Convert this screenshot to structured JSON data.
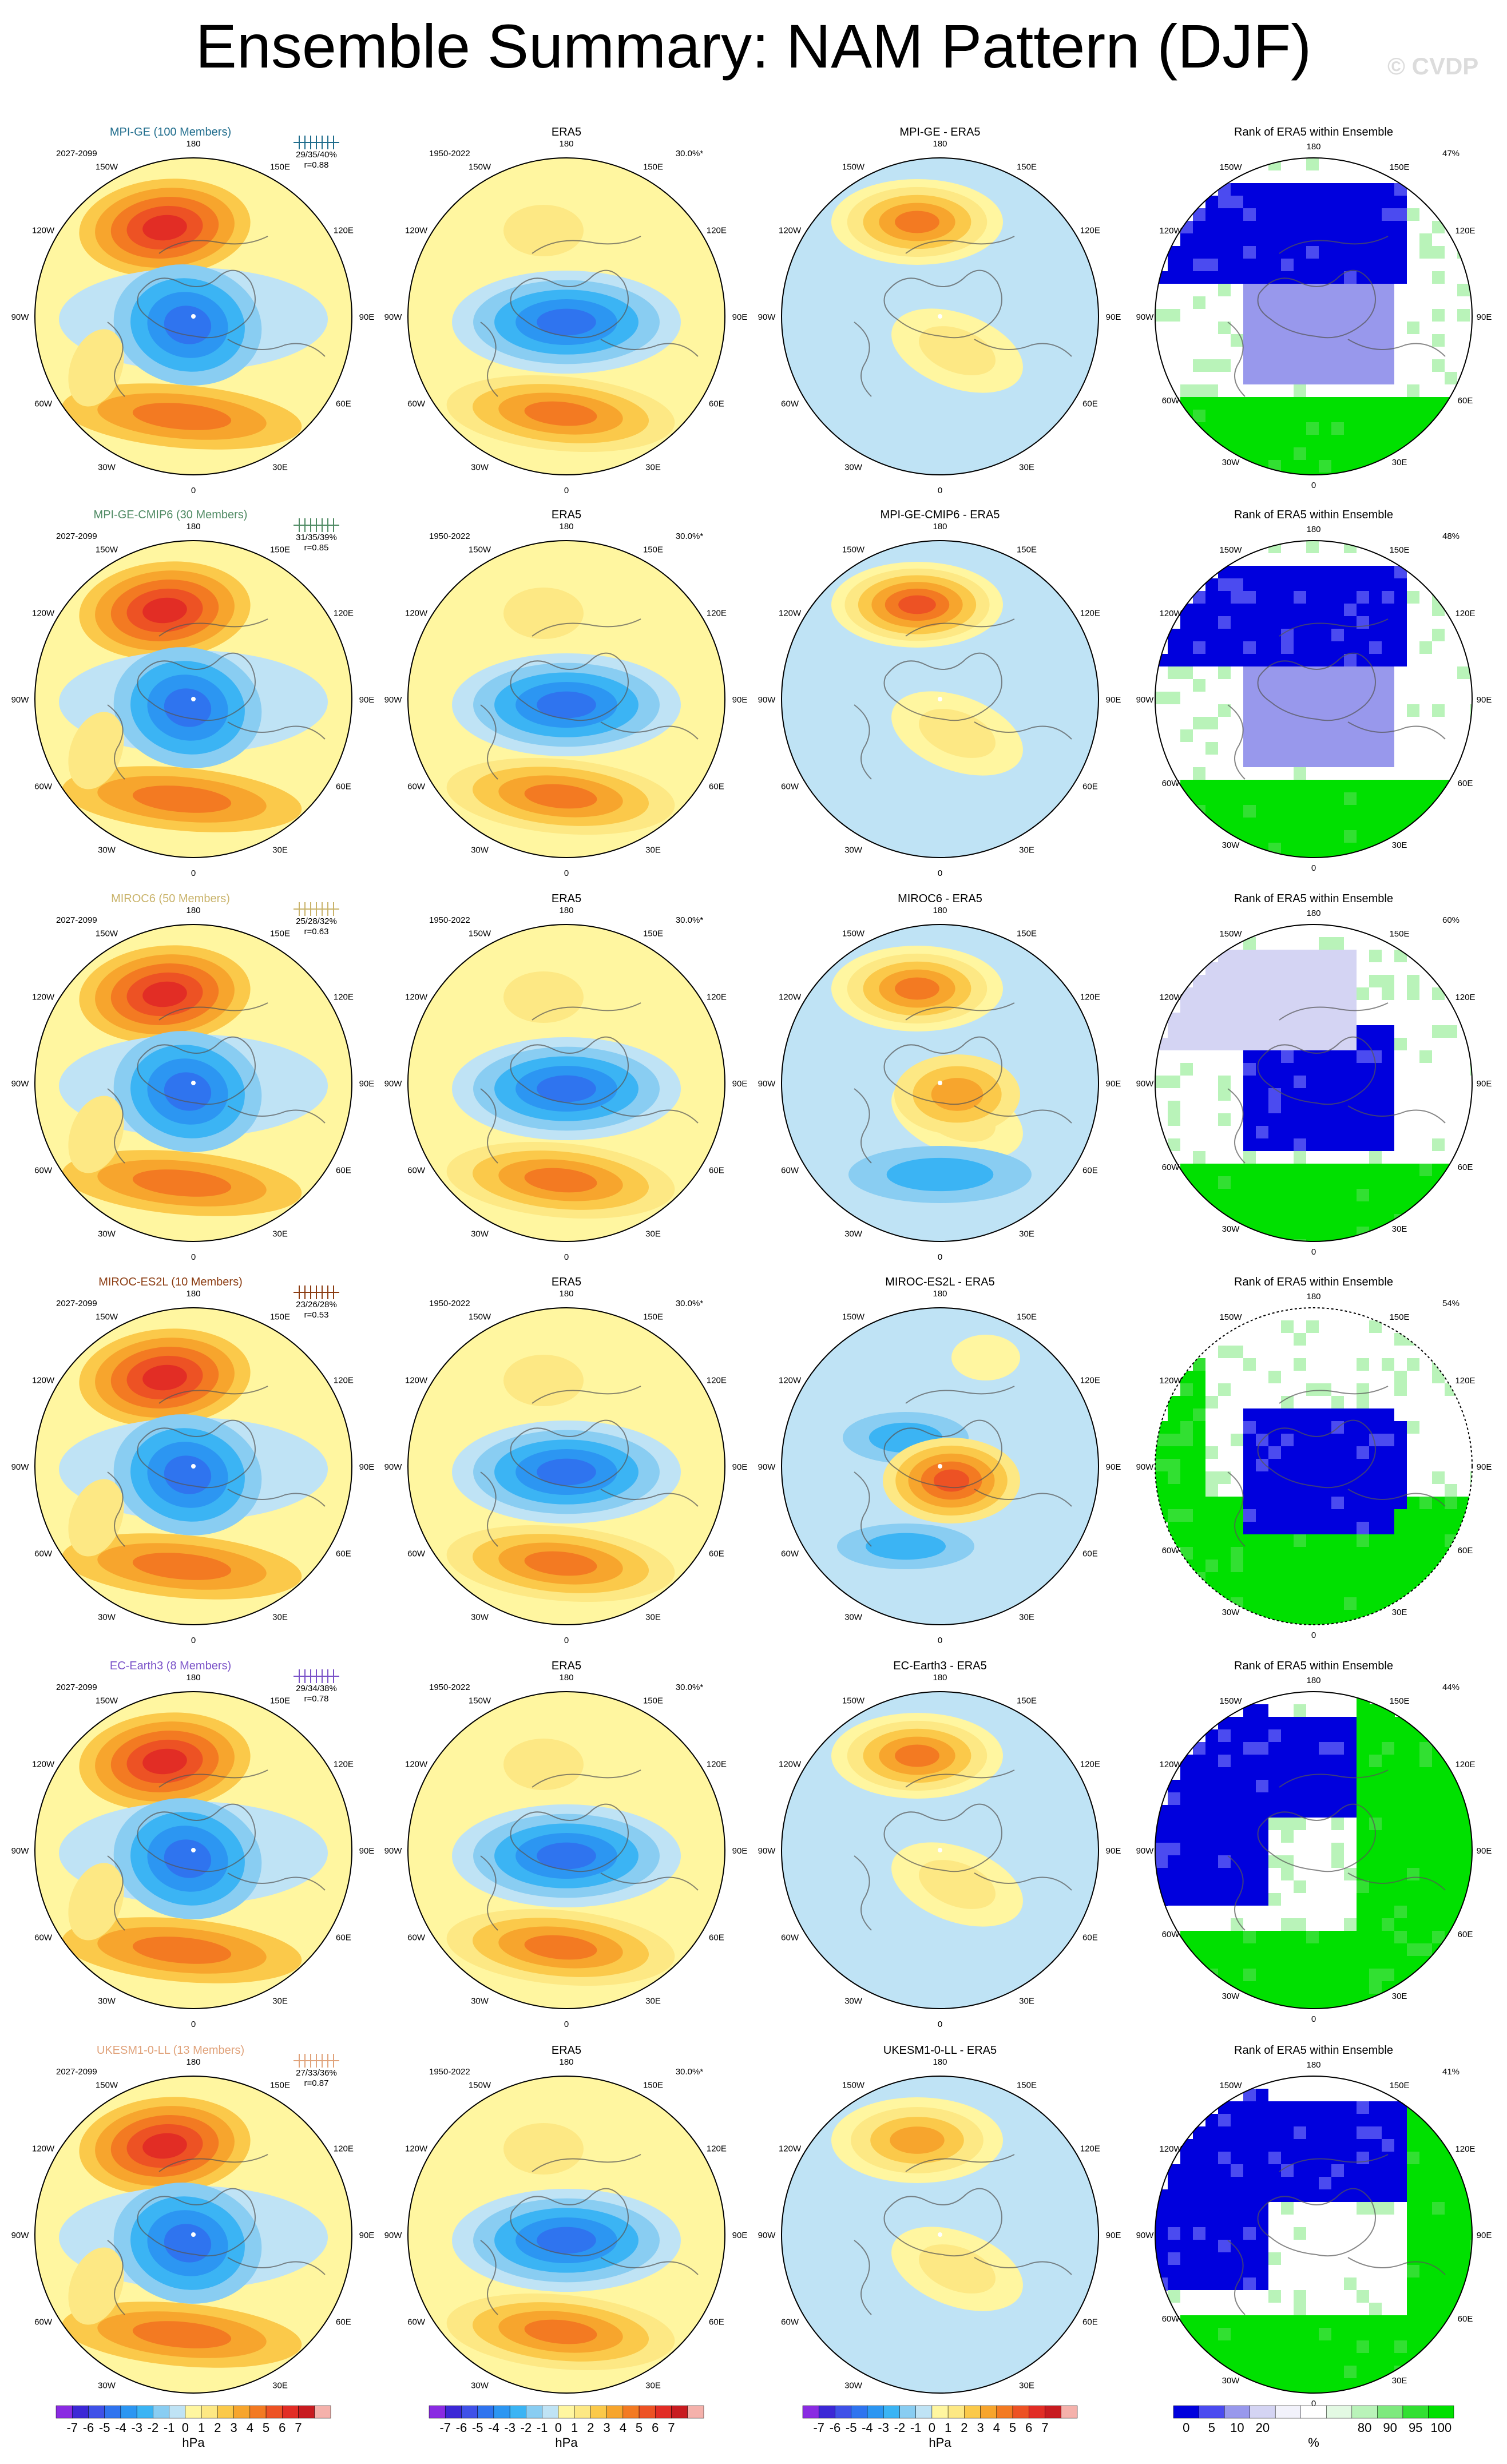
{
  "title": "Ensemble Summary: NAM Pattern (DJF)",
  "credit": "© CVDP",
  "colors": {
    "land_outline": "#555555",
    "diverging": [
      "#8a2be2",
      "#3c28d6",
      "#3f51e8",
      "#2f74ef",
      "#2c96f2",
      "#3bb4f4",
      "#89cdf2",
      "#bfe3f5",
      "#fff6a0",
      "#fde884",
      "#fbc94a",
      "#f7a52d",
      "#f37a22",
      "#ed5224",
      "#e22d25",
      "#c81b20",
      "#f5b1ab"
    ],
    "rank": [
      "#0000dd",
      "#4b4bf0",
      "#9898ec",
      "#d4d4f3",
      "#f2f2fb",
      "#ffffff",
      "#e3f9e3",
      "#b9f3b9",
      "#7ee97e",
      "#32e032",
      "#00e000"
    ]
  },
  "chart_data": {
    "type": "heatmap",
    "column_titles": [
      "ERA5",
      "Rank of ERA5 within Ensemble"
    ],
    "obs_period": "1950-2022",
    "obs_pct": "30.0%*",
    "rows": [
      {
        "model": "MPI-GE (100 Members)",
        "model_short": "MPI-GE",
        "color": "#1f6c8c",
        "period": "2027-2099",
        "stats": "29/35/40%",
        "r": "r=0.88",
        "diff_title": "MPI-GE - ERA5",
        "rank_pct": "47%"
      },
      {
        "model": "MPI-GE-CMIP6 (30 Members)",
        "model_short": "MPI-GE-CMIP6",
        "color": "#4f8a63",
        "period": "2027-2099",
        "stats": "31/35/39%",
        "r": "r=0.85",
        "diff_title": "MPI-GE-CMIP6 - ERA5",
        "rank_pct": "48%"
      },
      {
        "model": "MIROC6 (50 Members)",
        "model_short": "MIROC6",
        "color": "#c9b36a",
        "period": "2027-2099",
        "stats": "25/28/32%",
        "r": "r=0.63",
        "diff_title": "MIROC6 - ERA5",
        "rank_pct": "60%"
      },
      {
        "model": "MIROC-ES2L (10 Members)",
        "model_short": "MIROC-ES2L",
        "color": "#8b3c12",
        "period": "2027-2099",
        "stats": "23/26/28%",
        "r": "r=0.53",
        "diff_title": "MIROC-ES2L - ERA5",
        "rank_pct": "54%"
      },
      {
        "model": "EC-Earth3 (8 Members)",
        "model_short": "EC-Earth3",
        "color": "#7a52c8",
        "period": "2027-2099",
        "stats": "29/34/38%",
        "r": "r=0.78",
        "diff_title": "EC-Earth3 - ERA5",
        "rank_pct": "44%"
      },
      {
        "model": "UKESM1-0-LL (13 Members)",
        "model_short": "UKESM1-0-LL",
        "color": "#e0a27a",
        "period": "2027-2099",
        "stats": "27/33/36%",
        "r": "r=0.87",
        "diff_title": "UKESM1-0-LL - ERA5",
        "rank_pct": "41%"
      }
    ],
    "lon_labels": [
      "180",
      "150E",
      "120E",
      "90E",
      "60E",
      "30E",
      "0",
      "30W",
      "60W",
      "90W",
      "120W",
      "150W"
    ],
    "colorbar_ticks": [
      "-7",
      "-6",
      "-5",
      "-4",
      "-3",
      "-2",
      "-1",
      "0",
      "1",
      "2",
      "3",
      "4",
      "5",
      "6",
      "7"
    ],
    "colorbar_unit": "hPa",
    "rank_ticks": [
      "0",
      "5",
      "10",
      "20",
      "80",
      "90",
      "95",
      "100"
    ],
    "rank_unit": "%"
  }
}
